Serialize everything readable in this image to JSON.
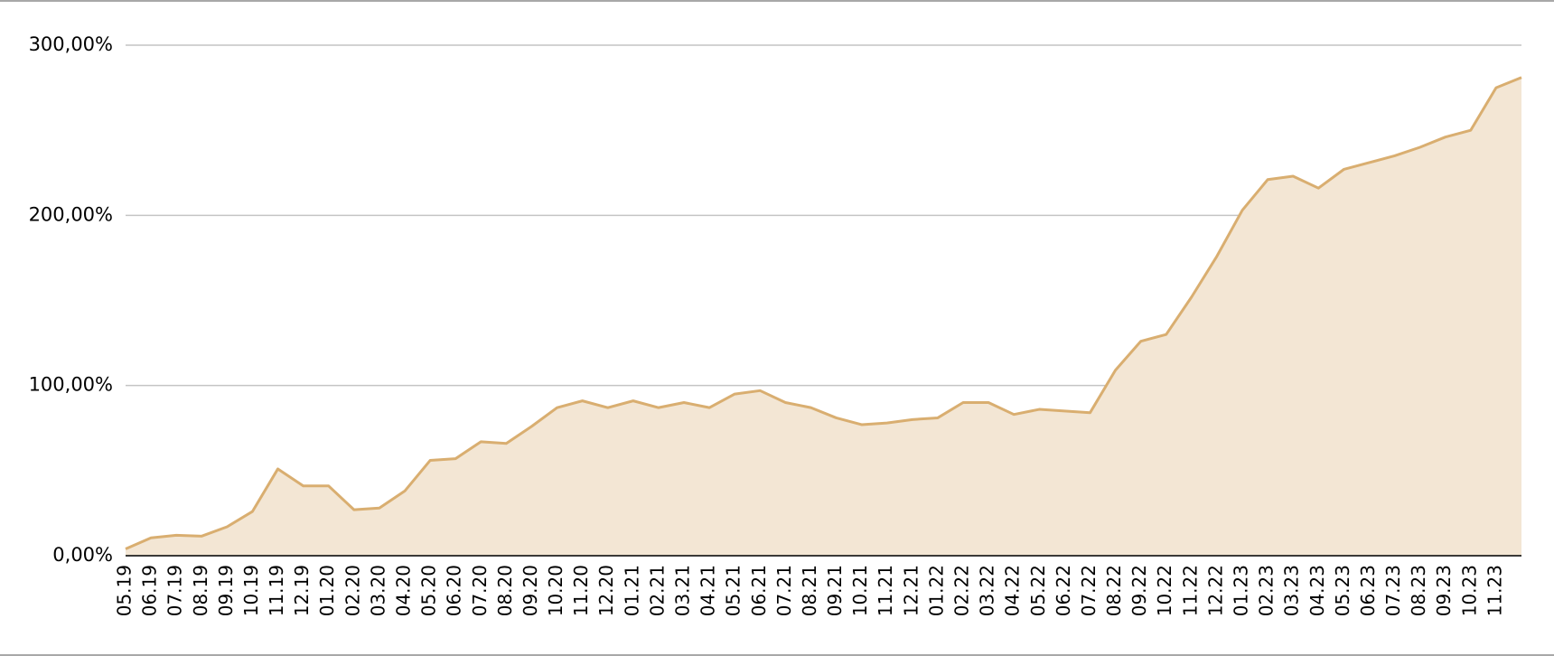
{
  "chart_data": {
    "type": "area",
    "categories": [
      "05.19",
      "06.19",
      "07.19",
      "08.19",
      "09.19",
      "10.19",
      "11.19",
      "12.19",
      "01.20",
      "02.20",
      "03.20",
      "04.20",
      "05.20",
      "06.20",
      "07.20",
      "08.20",
      "09.20",
      "10.20",
      "11.20",
      "12.20",
      "01.21",
      "02.21",
      "03.21",
      "04.21",
      "05.21",
      "06.21",
      "07.21",
      "08.21",
      "09.21",
      "10.21",
      "11.21",
      "12.21",
      "01.22",
      "02.22",
      "03.22",
      "04.22",
      "05.22",
      "06.22",
      "07.22",
      "08.22",
      "09.22",
      "10.22",
      "11.22",
      "12.22",
      "01.23",
      "02.23",
      "03.23",
      "04.23",
      "05.23",
      "06.23",
      "07.23",
      "08.23",
      "09.23",
      "10.23",
      "11.23",
      null
    ],
    "series": [
      {
        "color": "#d9ae70",
        "fill": "#f3e6d4",
        "values": [
          4,
          10.5,
          12,
          11.5,
          17,
          26,
          51,
          41,
          41,
          27,
          28,
          38,
          56,
          57,
          67,
          66,
          76,
          87,
          91,
          87,
          91,
          87,
          90,
          87,
          95,
          97,
          90,
          87,
          81,
          77,
          78,
          80,
          81,
          90,
          90,
          83,
          86,
          85,
          84,
          109,
          126,
          130,
          152,
          176,
          203,
          221,
          223,
          216,
          227,
          231,
          235,
          240,
          246,
          250,
          275,
          281
        ]
      }
    ],
    "ylim": [
      0,
      300
    ],
    "yticks": [
      {
        "value": 0,
        "label": "0,00%"
      },
      {
        "value": 100,
        "label": "100,00%"
      },
      {
        "value": 200,
        "label": "200,00%"
      },
      {
        "value": 300,
        "label": "300,00%"
      }
    ],
    "grid": true
  }
}
